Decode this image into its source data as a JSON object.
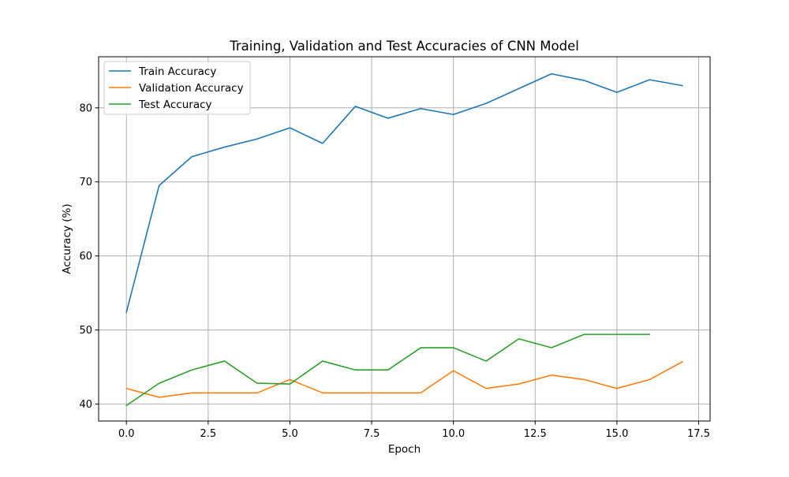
{
  "chart_data": {
    "type": "line",
    "title": "Training, Validation and Test Accuracies of CNN Model",
    "xlabel": "Epoch",
    "ylabel": "Accuracy (%)",
    "xlim": [
      -0.85,
      17.85
    ],
    "ylim": [
      37.7,
      86.9
    ],
    "grid": true,
    "legend_position": "top-left",
    "x_ticks": [
      0,
      2.5,
      5,
      7.5,
      10,
      12.5,
      15,
      17.5
    ],
    "x_tick_labels": [
      "0.0",
      "2.5",
      "5.0",
      "7.5",
      "10.0",
      "12.5",
      "15.0",
      "17.5"
    ],
    "y_ticks": [
      40,
      50,
      60,
      70,
      80
    ],
    "y_tick_labels": [
      "40",
      "50",
      "60",
      "70",
      "80"
    ],
    "series": [
      {
        "name": "Train Accuracy",
        "color": "#1f77b4",
        "x": [
          0,
          1,
          2,
          3,
          4,
          5,
          6,
          7,
          8,
          9,
          10,
          11,
          12,
          13,
          14,
          15,
          16,
          17
        ],
        "values": [
          52.4,
          69.5,
          73.4,
          74.7,
          75.8,
          77.3,
          75.2,
          80.2,
          78.6,
          79.9,
          79.1,
          80.6,
          82.6,
          84.6,
          83.7,
          82.1,
          83.8,
          83.0
        ]
      },
      {
        "name": "Validation Accuracy",
        "color": "#ff7f0e",
        "x": [
          0,
          1,
          2,
          3,
          4,
          5,
          6,
          7,
          8,
          9,
          10,
          11,
          12,
          13,
          14,
          15,
          16,
          17
        ],
        "values": [
          42.1,
          40.9,
          41.5,
          41.5,
          41.5,
          43.3,
          41.5,
          41.5,
          41.5,
          41.5,
          44.5,
          42.1,
          42.7,
          43.9,
          43.3,
          42.1,
          43.3,
          45.7
        ]
      },
      {
        "name": "Test Accuracy",
        "color": "#2ca02c",
        "x": [
          0,
          1,
          2,
          3,
          4,
          5,
          6,
          7,
          8,
          9,
          10,
          11,
          12,
          13,
          14,
          15,
          16
        ],
        "values": [
          39.8,
          42.8,
          44.6,
          45.8,
          42.8,
          42.7,
          45.8,
          44.6,
          44.6,
          47.6,
          47.6,
          45.8,
          48.8,
          47.6,
          49.4,
          49.4,
          49.4
        ]
      }
    ]
  }
}
